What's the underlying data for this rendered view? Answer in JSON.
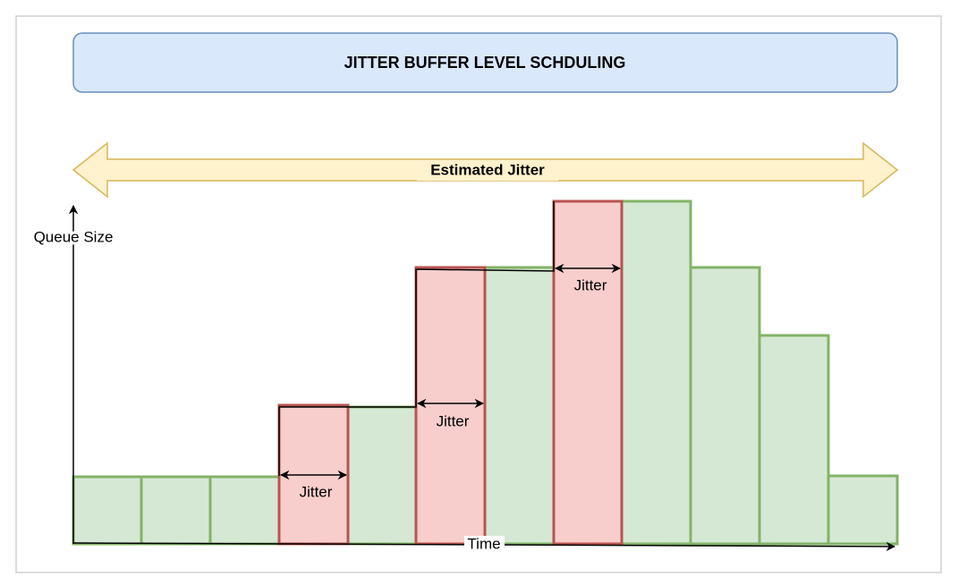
{
  "title": "JITTER BUFFER LEVEL SCHDULING",
  "range_label": "Estimated Jitter",
  "y_axis_label": "Queue Size",
  "x_axis_label": "Time",
  "jitter_labels": [
    "Jitter",
    "Jitter",
    "Jitter"
  ]
}
